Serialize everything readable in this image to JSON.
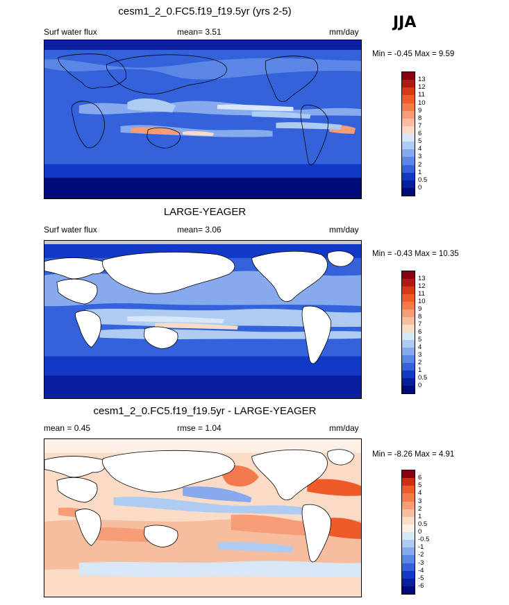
{
  "season": "JJA",
  "panels": [
    {
      "title": "cesm1_2_0.FC5.f19_f19.5yr (yrs 2-5)",
      "left": "Surf water flux",
      "middle": "mean=   3.51",
      "right": "mm/day",
      "minmax": "Min =  -0.45 Max =   9.59",
      "land_masked": false,
      "type": "field",
      "colorbar_labels": [
        "13",
        "12",
        "11",
        "10",
        "9",
        "8",
        "7",
        "6",
        "5",
        "4",
        "3",
        "2",
        "1",
        "0.5",
        "0"
      ]
    },
    {
      "title": "LARGE-YEAGER",
      "left": "Surf water flux",
      "middle": "mean=   3.06",
      "right": "mm/day",
      "minmax": "Min =  -0.43 Max =  10.35",
      "land_masked": true,
      "type": "field",
      "colorbar_labels": [
        "13",
        "12",
        "11",
        "10",
        "9",
        "8",
        "7",
        "6",
        "5",
        "4",
        "3",
        "2",
        "1",
        "0.5",
        "0"
      ]
    },
    {
      "title": "cesm1_2_0.FC5.f19_f19.5yr - LARGE-YEAGER",
      "left": "mean =   0.45",
      "middle": "rmse =   1.04",
      "right": "mm/day",
      "minmax": "Min =  -8.26 Max =   4.91",
      "land_masked": true,
      "type": "diff",
      "colorbar_labels": [
        "6",
        "5",
        "4",
        "3",
        "2",
        "1",
        "0.5",
        "0",
        "-0.5",
        "-1",
        "-2",
        "-3",
        "-4",
        "-5",
        "-6"
      ]
    }
  ],
  "colors": {
    "field_scale": [
      "#87000f",
      "#b01a12",
      "#d83a16",
      "#ef5a29",
      "#f47a4e",
      "#f69c76",
      "#f7bd9f",
      "#fadcc6",
      "#d7e7f7",
      "#aecbf2",
      "#86aaed",
      "#5c86e6",
      "#3462da",
      "#1238c8",
      "#0a1ea0",
      "#000a78"
    ],
    "diff_scale": [
      "#87000f",
      "#cf2f10",
      "#ef5a29",
      "#f47a4e",
      "#f69c76",
      "#f7bd9f",
      "#fadcc6",
      "#fdf0e6",
      "#d7e7f7",
      "#aecbf2",
      "#86aaed",
      "#5c86e6",
      "#3462da",
      "#1238c8",
      "#0a1ea0",
      "#000a78"
    ]
  }
}
